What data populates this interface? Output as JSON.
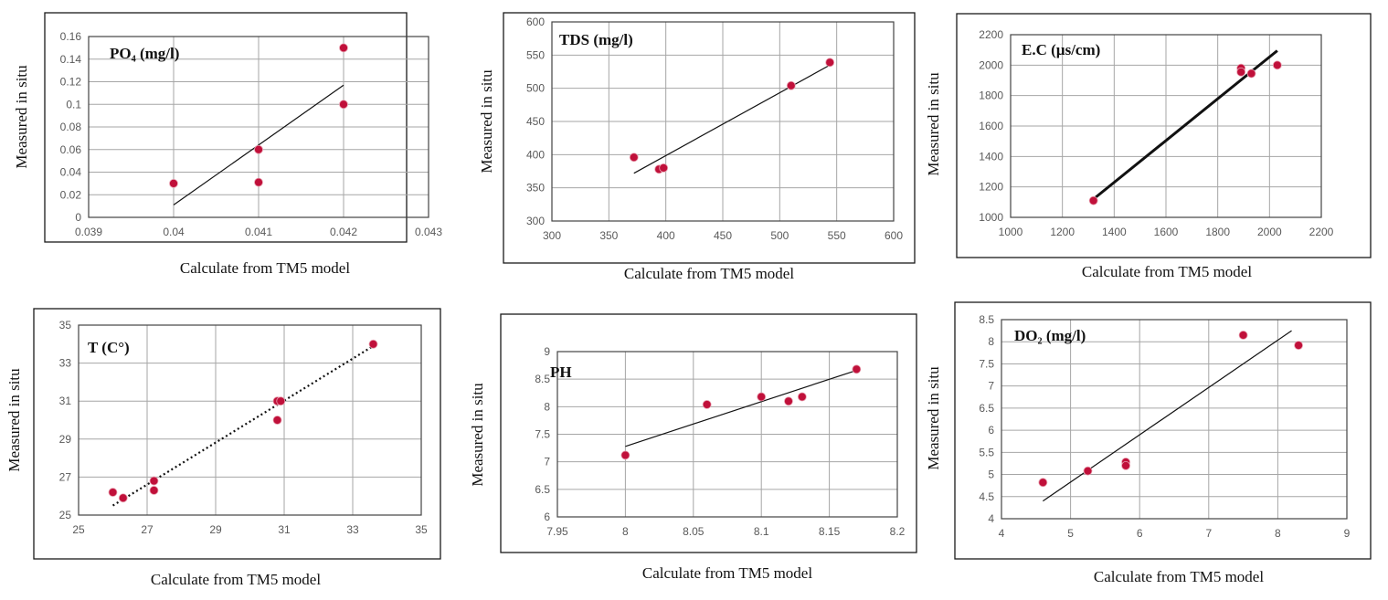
{
  "chart_data": [
    {
      "type": "scatter",
      "title": "PO₄ (mg/l)",
      "xlabel": "Calculate from TM5 model",
      "ylabel": "Measured in situ",
      "xlim": [
        0.039,
        0.043
      ],
      "ylim": [
        0,
        0.16
      ],
      "xticks": [
        "0.039",
        "0.04",
        "0.041",
        "0.042",
        "0.043"
      ],
      "yticks": [
        "0",
        "0.02",
        "0.04",
        "0.06",
        "0.08",
        "0.1",
        "0.12",
        "0.14",
        "0.16"
      ],
      "points": [
        [
          0.04,
          0.03
        ],
        [
          0.041,
          0.06
        ],
        [
          0.041,
          0.031
        ],
        [
          0.042,
          0.15
        ],
        [
          0.042,
          0.1
        ]
      ],
      "trendline": {
        "style": "solid",
        "color": "#111111",
        "from": [
          0.04,
          0.011
        ],
        "to": [
          0.042,
          0.117
        ]
      },
      "grid": true
    },
    {
      "type": "scatter",
      "title": "TDS (mg/l)",
      "xlabel": "Calculate from TM5 model",
      "ylabel": "Measured in situ",
      "xlim": [
        300,
        600
      ],
      "ylim": [
        300,
        600
      ],
      "xticks": [
        "300",
        "350",
        "400",
        "450",
        "500",
        "550",
        "600"
      ],
      "yticks": [
        "300",
        "350",
        "400",
        "450",
        "500",
        "550",
        "600"
      ],
      "points": [
        [
          372,
          396
        ],
        [
          394,
          378
        ],
        [
          398,
          380
        ],
        [
          510,
          504
        ],
        [
          544,
          539
        ]
      ],
      "trendline": {
        "style": "solid",
        "color": "#111111",
        "from": [
          372,
          372
        ],
        "to": [
          544,
          535
        ]
      },
      "grid": true
    },
    {
      "type": "scatter",
      "title": "E.C  (µs/cm)",
      "xlabel": "Calculate from TM5 model",
      "ylabel": "Measured in situ",
      "xlim": [
        1000,
        2200
      ],
      "ylim": [
        1000,
        2200
      ],
      "xticks": [
        "1000",
        "1200",
        "1400",
        "1600",
        "1800",
        "2000",
        "2200"
      ],
      "yticks": [
        "1000",
        "1200",
        "1400",
        "1600",
        "1800",
        "2000",
        "2200"
      ],
      "points": [
        [
          1320,
          1110
        ],
        [
          1890,
          1980
        ],
        [
          1890,
          1955
        ],
        [
          1930,
          1945
        ],
        [
          2030,
          2000
        ]
      ],
      "trendline": {
        "style": "bold",
        "color": "#111111",
        "from": [
          1320,
          1120
        ],
        "to": [
          2030,
          2095
        ]
      },
      "grid": true
    },
    {
      "type": "scatter",
      "title": "T (C°)",
      "xlabel": "Calculate from TM5 model",
      "ylabel": "Measured in situ",
      "xlim": [
        25,
        35
      ],
      "ylim": [
        25,
        35
      ],
      "xticks": [
        "25",
        "27",
        "29",
        "31",
        "33",
        "35"
      ],
      "yticks": [
        "25",
        "27",
        "29",
        "31",
        "33",
        "35"
      ],
      "points": [
        [
          26,
          26.2
        ],
        [
          26.3,
          25.9
        ],
        [
          27.2,
          26.8
        ],
        [
          27.2,
          26.3
        ],
        [
          30.8,
          31
        ],
        [
          30.9,
          31
        ],
        [
          30.8,
          30
        ],
        [
          33.6,
          34
        ]
      ],
      "trendline": {
        "style": "dotted",
        "color": "#4a90c8",
        "from": [
          26,
          25.5
        ],
        "to": [
          33.6,
          33.9
        ]
      },
      "grid": true
    },
    {
      "type": "scatter",
      "title": "PH",
      "xlabel": "Calculate from TM5 model",
      "ylabel": "Measured in situ",
      "xlim": [
        7.95,
        8.2
      ],
      "ylim": [
        6,
        9
      ],
      "xticks": [
        "7.95",
        "8",
        "8.05",
        "8.1",
        "8.15",
        "8.2"
      ],
      "yticks": [
        "6",
        "6.5",
        "7",
        "7.5",
        "8",
        "8.5",
        "9"
      ],
      "points": [
        [
          8,
          7.12
        ],
        [
          8.06,
          8.04
        ],
        [
          8.1,
          8.18
        ],
        [
          8.12,
          8.1
        ],
        [
          8.13,
          8.18
        ],
        [
          8.17,
          8.68
        ]
      ],
      "trendline": {
        "style": "solid",
        "color": "#111111",
        "from": [
          8,
          7.28
        ],
        "to": [
          8.17,
          8.66
        ]
      },
      "grid": true
    },
    {
      "type": "scatter",
      "title": "DO₂ (mg/l)",
      "xlabel": "Calculate from TM5 model",
      "ylabel": "Measured in situ",
      "xlim": [
        4,
        9
      ],
      "ylim": [
        4,
        8.5
      ],
      "xticks": [
        "4",
        "5",
        "6",
        "7",
        "8",
        "9"
      ],
      "yticks": [
        "4",
        "4.5",
        "5",
        "5.5",
        "6",
        "6.5",
        "7",
        "7.5",
        "8",
        "8.5"
      ],
      "points": [
        [
          4.6,
          4.82
        ],
        [
          5.25,
          5.08
        ],
        [
          5.8,
          5.28
        ],
        [
          5.8,
          5.2
        ],
        [
          7.5,
          8.15
        ],
        [
          8.3,
          7.92
        ]
      ],
      "trendline": {
        "style": "solid",
        "color": "#111111",
        "from": [
          4.6,
          4.4
        ],
        "to": [
          8.2,
          8.25
        ]
      },
      "grid": true
    }
  ]
}
